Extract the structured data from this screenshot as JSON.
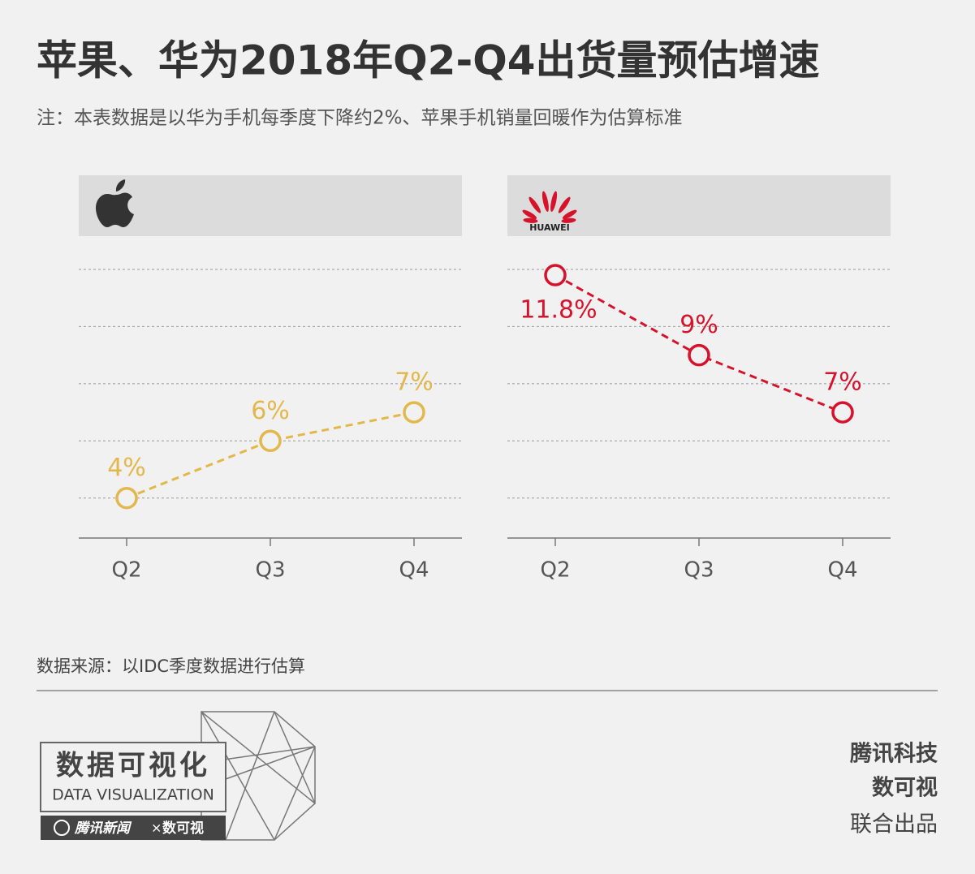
{
  "title": "苹果、华为2018年Q2-Q4出货量预估增速",
  "subtitle": "注：本表数据是以华为手机每季度下降约2%、苹果手机销量回暖作为估算标准",
  "chart_data": [
    {
      "type": "line",
      "categories": [
        "Q2",
        "Q3",
        "Q4"
      ],
      "series": [
        {
          "color": "#e2b84c",
          "values": [
            4,
            6,
            7
          ],
          "value_labels": [
            "4%",
            "6%",
            "7%"
          ]
        }
      ],
      "ylim": [
        2.6,
        12
      ],
      "yticks": [
        4,
        6,
        8,
        10,
        12
      ],
      "grid": true
    },
    {
      "type": "line",
      "logo_text": "HUAWEI",
      "categories": [
        "Q2",
        "Q3",
        "Q4"
      ],
      "series": [
        {
          "color": "#d7132c",
          "values": [
            11.8,
            9,
            7
          ],
          "value_labels": [
            "11.8%",
            "9%",
            "7%"
          ]
        }
      ],
      "ylim": [
        2.6,
        12
      ],
      "yticks": [
        4,
        6,
        8,
        10,
        12
      ],
      "grid": true
    }
  ],
  "source": "数据来源：以IDC季度数据进行估算",
  "logo": {
    "title": "数据可视化",
    "subtitle": "DATA VISUALIZATION",
    "bar_left": "腾讯新闻",
    "bar_sep": "×",
    "bar_right": "数可视"
  },
  "footer": [
    "腾讯科技",
    "数可视",
    "联合出品"
  ]
}
